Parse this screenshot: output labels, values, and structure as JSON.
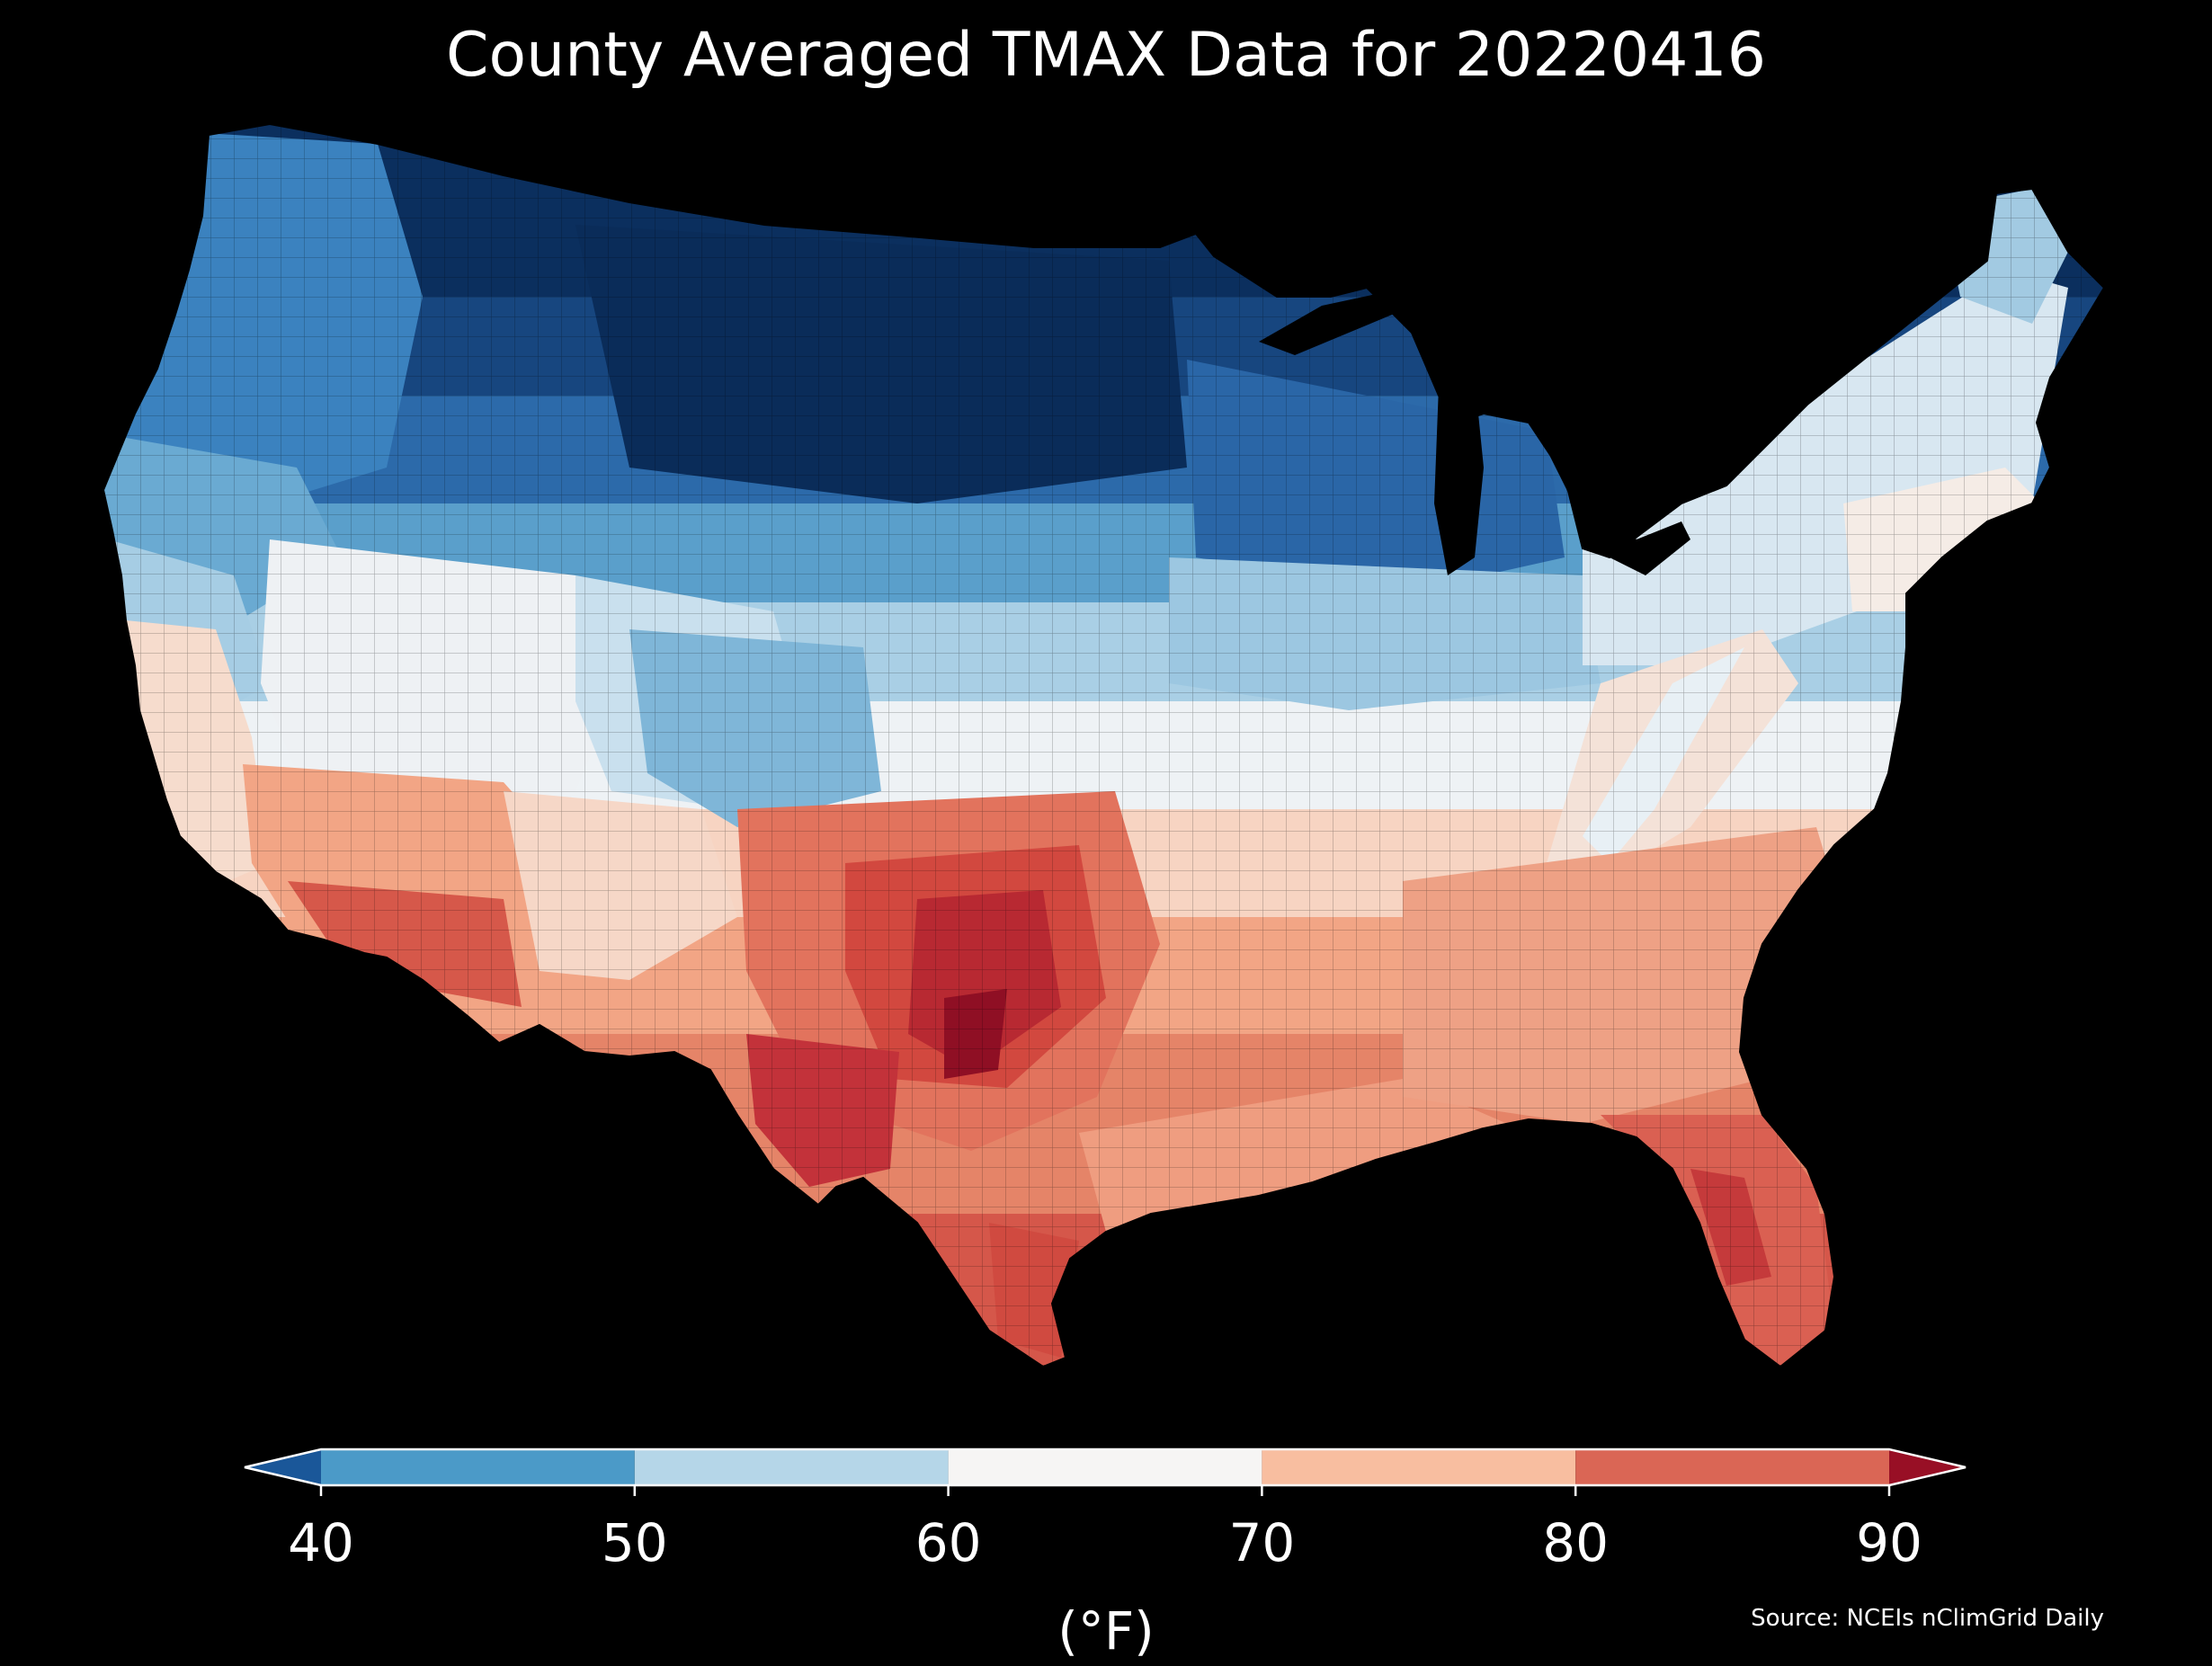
{
  "title": "County Averaged TMAX Data for 20220416",
  "colorbar": {
    "ticks": [
      "40",
      "50",
      "60",
      "70",
      "80",
      "90"
    ],
    "unit": "(°F)",
    "bins": [
      {
        "range": "<40",
        "color": "#1a5799"
      },
      {
        "range": "40-50",
        "color": "#4b9ac8"
      },
      {
        "range": "50-60",
        "color": "#b5d6e8"
      },
      {
        "range": "60-70",
        "color": "#f6f5f4"
      },
      {
        "range": "70-80",
        "color": "#f8bea0"
      },
      {
        "range": "80-90",
        "color": "#da6655"
      },
      {
        "range": ">90",
        "color": "#980f25"
      }
    ]
  },
  "source": "Source: NCEIs nClimGrid Daily",
  "colors": {
    "background": "#000000",
    "text": "#ffffff",
    "coldest": "#0b2f5e",
    "hottest": "#8f0f24"
  }
}
